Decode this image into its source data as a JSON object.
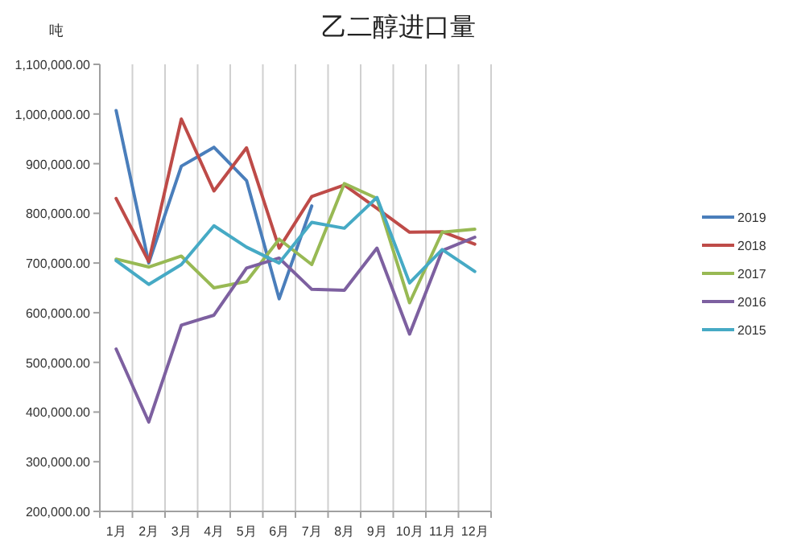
{
  "chart_data": {
    "type": "line",
    "title": "乙二醇进口量",
    "ylabel": "吨",
    "categories": [
      "1月",
      "2月",
      "3月",
      "4月",
      "5月",
      "6月",
      "7月",
      "8月",
      "9月",
      "10月",
      "11月",
      "12月"
    ],
    "series": [
      {
        "name": "2019",
        "color": "#4a7ebb",
        "values": [
          1007000,
          700000,
          895000,
          933000,
          866000,
          628000,
          815000,
          null,
          null,
          null,
          null,
          null
        ]
      },
      {
        "name": "2018",
        "color": "#be4b48",
        "values": [
          830000,
          703000,
          990000,
          845000,
          932000,
          730000,
          834000,
          857000,
          810000,
          762000,
          763000,
          738000
        ]
      },
      {
        "name": "2017",
        "color": "#98b954",
        "values": [
          708000,
          692000,
          714000,
          650000,
          663000,
          748000,
          697000,
          860000,
          830000,
          620000,
          762000,
          768000
        ]
      },
      {
        "name": "2016",
        "color": "#7d60a0",
        "values": [
          527000,
          380000,
          575000,
          595000,
          690000,
          710000,
          647000,
          645000,
          730000,
          557000,
          725000,
          752000
        ]
      },
      {
        "name": "2015",
        "color": "#46aac5",
        "values": [
          705000,
          657000,
          697000,
          775000,
          732000,
          700000,
          782000,
          770000,
          832000,
          660000,
          727000,
          683000
        ]
      }
    ],
    "ylim": [
      200000,
      1100000
    ],
    "yticks": [
      {
        "value": 200000,
        "label": "200,000.00"
      },
      {
        "value": 300000,
        "label": "300,000.00"
      },
      {
        "value": 400000,
        "label": "400,000.00"
      },
      {
        "value": 500000,
        "label": "500,000.00"
      },
      {
        "value": 600000,
        "label": "600,000.00"
      },
      {
        "value": 700000,
        "label": "700,000.00"
      },
      {
        "value": 800000,
        "label": "800,000.00"
      },
      {
        "value": 900000,
        "label": "900,000.00"
      },
      {
        "value": 1000000,
        "label": "1,000,000.00"
      },
      {
        "value": 1100000,
        "label": "1,100,000.00"
      }
    ],
    "grid": "x",
    "legend": "right",
    "marker": "none",
    "line_style": "solid"
  }
}
